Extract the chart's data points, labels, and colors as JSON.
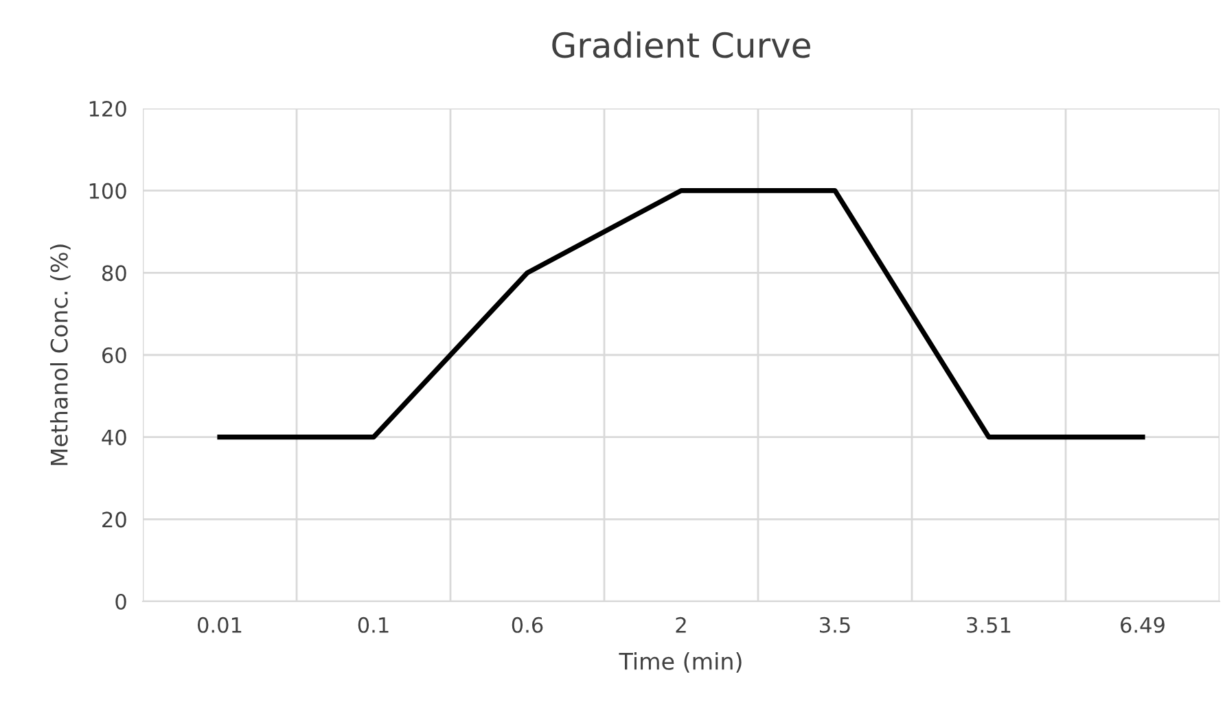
{
  "chart_data": {
    "type": "line",
    "title": "Gradient Curve",
    "xlabel": "Time (min)",
    "ylabel": "Methanol Conc. (%)",
    "categories": [
      "0.01",
      "0.1",
      "0.6",
      "2",
      "3.5",
      "3.51",
      "6.49"
    ],
    "series": [
      {
        "color": "#000000",
        "values": [
          40,
          40,
          80,
          100,
          100,
          40,
          40
        ]
      }
    ],
    "ylim": [
      0,
      120
    ],
    "yticks": [
      0,
      20,
      40,
      60,
      80,
      100,
      120
    ],
    "grid": true,
    "marker": "none",
    "line_style": "solid"
  }
}
